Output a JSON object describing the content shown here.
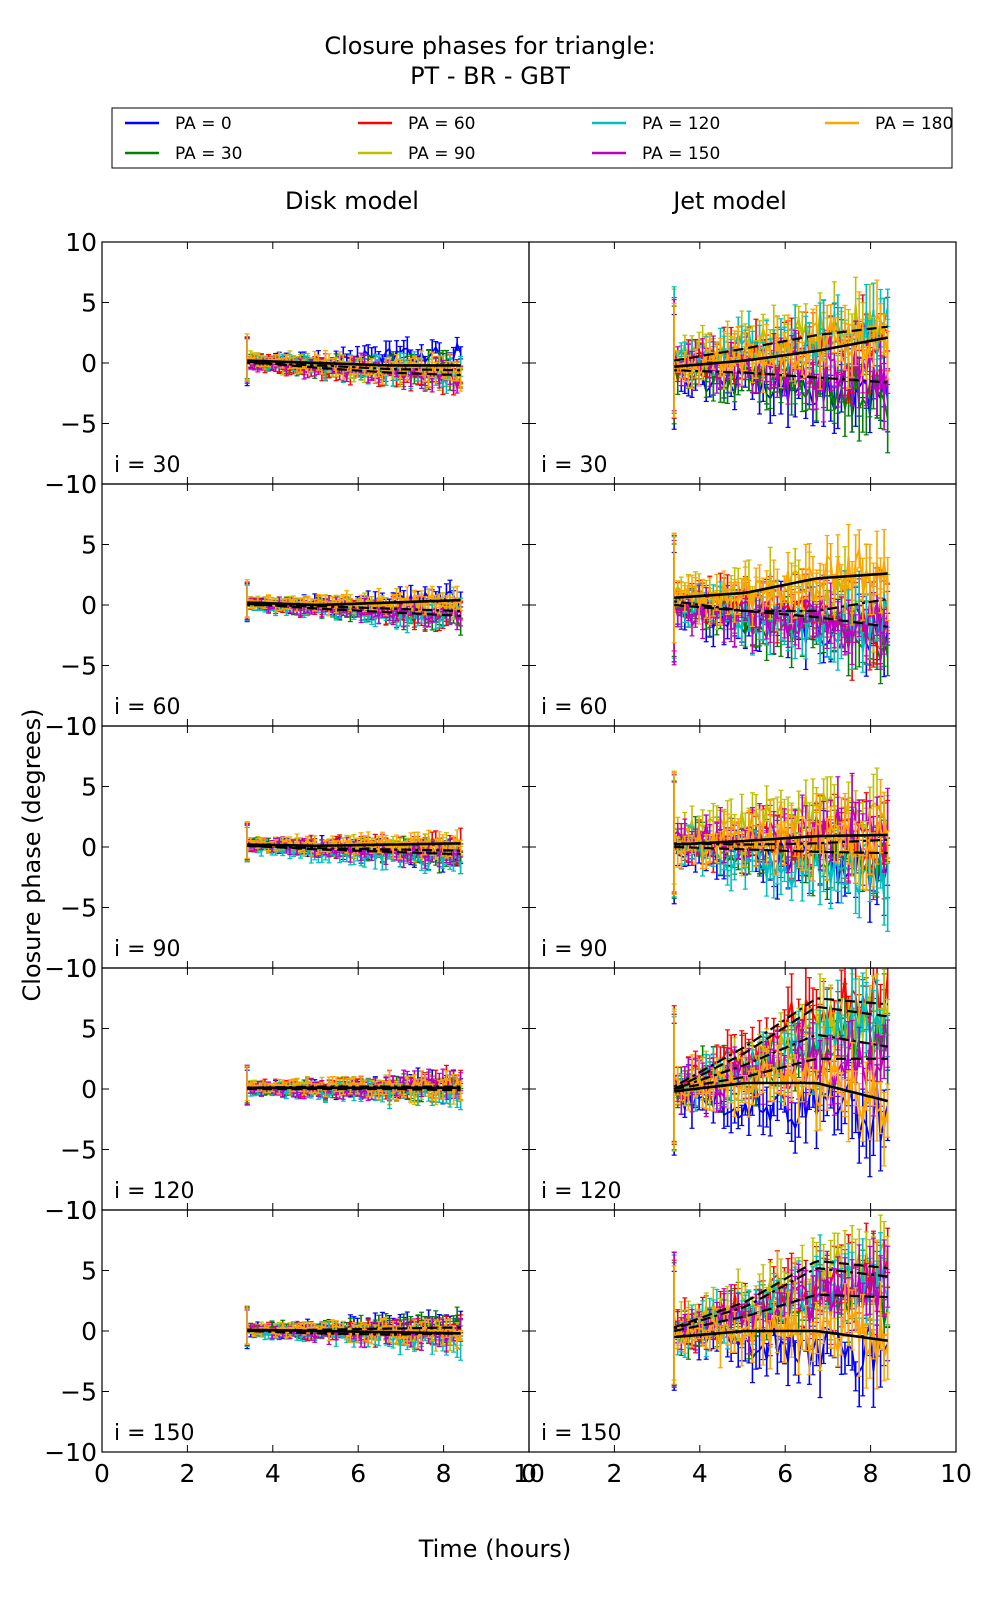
{
  "title_line1": "Closure phases for triangle:",
  "title_line2": "PT - BR - GBT",
  "ylabel": "Closure phase (degrees)",
  "xlabel": "Time (hours)",
  "column_titles": [
    "Disk model",
    "Jet model"
  ],
  "legend": [
    {
      "label": "PA = 0",
      "color": "#0000ff"
    },
    {
      "label": "PA = 30",
      "color": "#008000"
    },
    {
      "label": "PA = 60",
      "color": "#ff0000"
    },
    {
      "label": "PA = 90",
      "color": "#bfbf00"
    },
    {
      "label": "PA = 120",
      "color": "#00bfbf"
    },
    {
      "label": "PA = 150",
      "color": "#bf00bf"
    },
    {
      "label": "PA = 180",
      "color": "#ffa500"
    }
  ],
  "chart_data": {
    "type": "line",
    "title": "Closure phases for triangle: PT - BR - GBT",
    "xlabel": "Time (hours)",
    "ylabel": "Closure phase (degrees)",
    "xlim": [
      0,
      10
    ],
    "ylim": [
      -10,
      10
    ],
    "xticks": [
      "0",
      "2",
      "4",
      "6",
      "8",
      "10"
    ],
    "yticks": [
      "−10",
      "−5",
      "0",
      "5",
      "10"
    ],
    "time_range": [
      3.4,
      8.4
    ],
    "columns": [
      "Disk model",
      "Jet model"
    ],
    "rows": [
      "i = 30",
      "i = 60",
      "i = 90",
      "i = 120",
      "i = 150"
    ],
    "panels": [
      {
        "model": "Disk model",
        "label": "i = 30",
        "noise": 0.6,
        "trends": [
          [
            0.0,
            0.2,
            0.5,
            1.0
          ],
          [
            0.3,
            -0.3,
            -0.6,
            -0.3
          ],
          [
            0.1,
            -0.5,
            -1.0,
            -1.2
          ],
          [
            0.2,
            -0.2,
            -0.7,
            -0.8
          ],
          [
            0.1,
            -0.2,
            -0.6,
            -1.0
          ],
          [
            0.0,
            -0.4,
            -0.8,
            -1.2
          ],
          [
            0.2,
            -0.1,
            -0.5,
            -0.7
          ]
        ]
      },
      {
        "model": "Jet model",
        "label": "i = 30",
        "noise": 1.6,
        "trends": [
          [
            -1.0,
            -1.5,
            -2.0,
            -2.8
          ],
          [
            -0.5,
            -1.0,
            -1.8,
            -2.5
          ],
          [
            0.0,
            0.5,
            1.2,
            1.5
          ],
          [
            0.5,
            1.5,
            2.5,
            3.2
          ],
          [
            0.5,
            1.2,
            2.0,
            2.5
          ],
          [
            0.0,
            -0.3,
            -0.5,
            -1.0
          ],
          [
            -0.5,
            0.3,
            1.5,
            2.2
          ]
        ]
      },
      {
        "model": "Disk model",
        "label": "i = 60",
        "noise": 0.5,
        "trends": [
          [
            0.1,
            0.0,
            0.2,
            0.5
          ],
          [
            0.2,
            -0.2,
            -0.6,
            -1.2
          ],
          [
            0.1,
            -0.3,
            -0.6,
            -0.8
          ],
          [
            0.3,
            0.1,
            -0.1,
            0.0
          ],
          [
            0.0,
            -0.4,
            -0.8,
            -1.0
          ],
          [
            0.1,
            -0.2,
            -0.5,
            -0.9
          ],
          [
            0.3,
            0.1,
            0.2,
            0.4
          ]
        ]
      },
      {
        "model": "Jet model",
        "label": "i = 60",
        "noise": 1.6,
        "trends": [
          [
            -0.5,
            -1.0,
            -1.5,
            -2.0
          ],
          [
            0.0,
            -1.0,
            -2.0,
            -2.5
          ],
          [
            0.5,
            0.0,
            -1.0,
            -1.8
          ],
          [
            0.5,
            1.0,
            1.5,
            0.5
          ],
          [
            0.0,
            -1.0,
            -1.5,
            -2.0
          ],
          [
            -0.5,
            -1.0,
            -1.0,
            -1.2
          ],
          [
            0.6,
            1.0,
            2.2,
            2.6
          ]
        ]
      },
      {
        "model": "Disk model",
        "label": "i = 90",
        "noise": 0.5,
        "trends": [
          [
            0.2,
            0.0,
            -0.4,
            -0.6
          ],
          [
            0.3,
            0.0,
            -0.3,
            -0.8
          ],
          [
            0.2,
            0.0,
            0.0,
            0.2
          ],
          [
            0.3,
            0.1,
            0.0,
            -0.2
          ],
          [
            0.0,
            -0.4,
            -0.8,
            -1.0
          ],
          [
            0.2,
            0.0,
            -0.3,
            -0.5
          ],
          [
            0.3,
            0.2,
            0.2,
            0.3
          ]
        ]
      },
      {
        "model": "Jet model",
        "label": "i = 90",
        "noise": 1.6,
        "trends": [
          [
            0.0,
            -0.5,
            -1.0,
            -1.5
          ],
          [
            0.5,
            0.0,
            -0.5,
            -0.5
          ],
          [
            0.3,
            0.5,
            0.5,
            0.0
          ],
          [
            1.0,
            2.0,
            2.5,
            2.0
          ],
          [
            0.0,
            -1.0,
            -1.8,
            -2.0
          ],
          [
            0.3,
            1.0,
            1.5,
            1.0
          ],
          [
            0.3,
            0.6,
            0.9,
            1.0
          ]
        ]
      },
      {
        "model": "Disk model",
        "label": "i = 120",
        "noise": 0.5,
        "trends": [
          [
            0.0,
            0.0,
            0.2,
            0.3
          ],
          [
            0.2,
            0.0,
            0.1,
            0.0
          ],
          [
            0.1,
            0.2,
            0.3,
            0.5
          ],
          [
            0.2,
            0.1,
            0.0,
            -0.3
          ],
          [
            0.0,
            -0.2,
            -0.3,
            -0.4
          ],
          [
            0.1,
            0.0,
            0.2,
            0.3
          ],
          [
            0.2,
            0.2,
            0.2,
            0.1
          ]
        ]
      },
      {
        "model": "Jet model",
        "label": "i = 120",
        "noise": 1.8,
        "trends": [
          [
            -0.5,
            -1.0,
            -1.5,
            -2.0
          ],
          [
            0.0,
            1.5,
            3.5,
            4.5
          ],
          [
            0.5,
            3.0,
            6.5,
            7.5
          ],
          [
            0.0,
            2.0,
            5.0,
            6.0
          ],
          [
            0.0,
            1.5,
            4.0,
            6.5
          ],
          [
            0.0,
            1.0,
            2.0,
            2.5
          ],
          [
            0.0,
            0.5,
            0.5,
            -1.0
          ]
        ]
      },
      {
        "model": "Disk model",
        "label": "i = 150",
        "noise": 0.5,
        "trends": [
          [
            0.0,
            0.2,
            0.5,
            0.8
          ],
          [
            0.2,
            0.0,
            0.3,
            0.6
          ],
          [
            0.1,
            -0.1,
            -0.2,
            0.0
          ],
          [
            0.2,
            0.0,
            -0.2,
            -0.4
          ],
          [
            0.0,
            -0.2,
            -0.5,
            -1.0
          ],
          [
            0.1,
            -0.2,
            -0.3,
            -0.3
          ],
          [
            0.2,
            0.0,
            -0.1,
            -0.2
          ]
        ]
      },
      {
        "model": "Jet model",
        "label": "i = 150",
        "noise": 1.7,
        "trends": [
          [
            -0.5,
            -1.0,
            -1.5,
            -2.0
          ],
          [
            0.0,
            1.0,
            2.5,
            3.0
          ],
          [
            0.0,
            2.0,
            4.0,
            4.5
          ],
          [
            0.5,
            2.0,
            4.5,
            5.5
          ],
          [
            0.0,
            1.5,
            3.5,
            4.5
          ],
          [
            0.0,
            1.0,
            2.5,
            3.0
          ],
          [
            -0.5,
            0.0,
            0.0,
            -0.8
          ]
        ]
      }
    ],
    "fits": [
      {
        "model": "Disk model",
        "label": "i = 30",
        "lines": [
          [
            0.2,
            0.0,
            -0.2,
            -0.2
          ],
          [
            0.1,
            -0.4,
            -0.8,
            -1.0
          ],
          [
            0.0,
            -0.2,
            -0.5,
            -0.6
          ]
        ]
      },
      {
        "model": "Jet model",
        "label": "i = 30",
        "lines": [
          [
            -0.3,
            0.2,
            1.0,
            2.1
          ],
          [
            0.2,
            1.2,
            2.3,
            3.0
          ],
          [
            -0.6,
            -0.8,
            -1.2,
            -1.6
          ]
        ]
      },
      {
        "model": "Disk model",
        "label": "i = 60",
        "lines": [
          [
            0.2,
            0.0,
            0.2,
            0.4
          ],
          [
            0.1,
            -0.3,
            -0.6,
            -0.9
          ],
          [
            0.0,
            -0.1,
            -0.3,
            -0.5
          ]
        ]
      },
      {
        "model": "Jet model",
        "label": "i = 60",
        "lines": [
          [
            0.6,
            1.0,
            2.2,
            2.6
          ],
          [
            0.0,
            -0.5,
            -1.0,
            -1.8
          ],
          [
            0.3,
            -0.5,
            -0.5,
            0.5
          ]
        ]
      },
      {
        "model": "Disk model",
        "label": "i = 90",
        "lines": [
          [
            0.2,
            0.1,
            0.2,
            0.3
          ],
          [
            0.1,
            -0.2,
            -0.4,
            -0.6
          ],
          [
            0.1,
            -0.1,
            -0.2,
            -0.3
          ]
        ]
      },
      {
        "model": "Jet model",
        "label": "i = 90",
        "lines": [
          [
            0.2,
            0.5,
            0.9,
            1.0
          ],
          [
            0.0,
            -0.2,
            -0.4,
            -0.5
          ],
          [
            0.3,
            0.2,
            0.3,
            0.6
          ]
        ]
      },
      {
        "model": "Disk model",
        "label": "i = 120",
        "lines": [
          [
            0.1,
            0.1,
            0.1,
            0.1
          ],
          [
            0.0,
            0.0,
            0.0,
            -0.1
          ],
          [
            0.1,
            0.2,
            0.2,
            0.2
          ]
        ]
      },
      {
        "model": "Jet model",
        "label": "i = 120",
        "lines": [
          [
            -0.2,
            0.5,
            0.5,
            -1.0
          ],
          [
            0.0,
            1.0,
            2.5,
            2.5
          ],
          [
            0.0,
            2.0,
            4.5,
            3.5
          ],
          [
            0.0,
            3.0,
            6.8,
            6.0
          ],
          [
            0.2,
            3.5,
            7.5,
            7.0
          ]
        ]
      },
      {
        "model": "Disk model",
        "label": "i = 150",
        "lines": [
          [
            0.1,
            0.0,
            -0.1,
            -0.2
          ],
          [
            0.0,
            0.1,
            0.2,
            0.3
          ],
          [
            0.0,
            -0.2,
            -0.3,
            -0.2
          ]
        ]
      },
      {
        "model": "Jet model",
        "label": "i = 150",
        "lines": [
          [
            -0.5,
            0.0,
            0.0,
            -0.8
          ],
          [
            0.0,
            1.2,
            3.0,
            2.8
          ],
          [
            0.2,
            2.0,
            5.2,
            4.5
          ],
          [
            0.3,
            2.4,
            5.8,
            5.2
          ]
        ]
      }
    ]
  }
}
